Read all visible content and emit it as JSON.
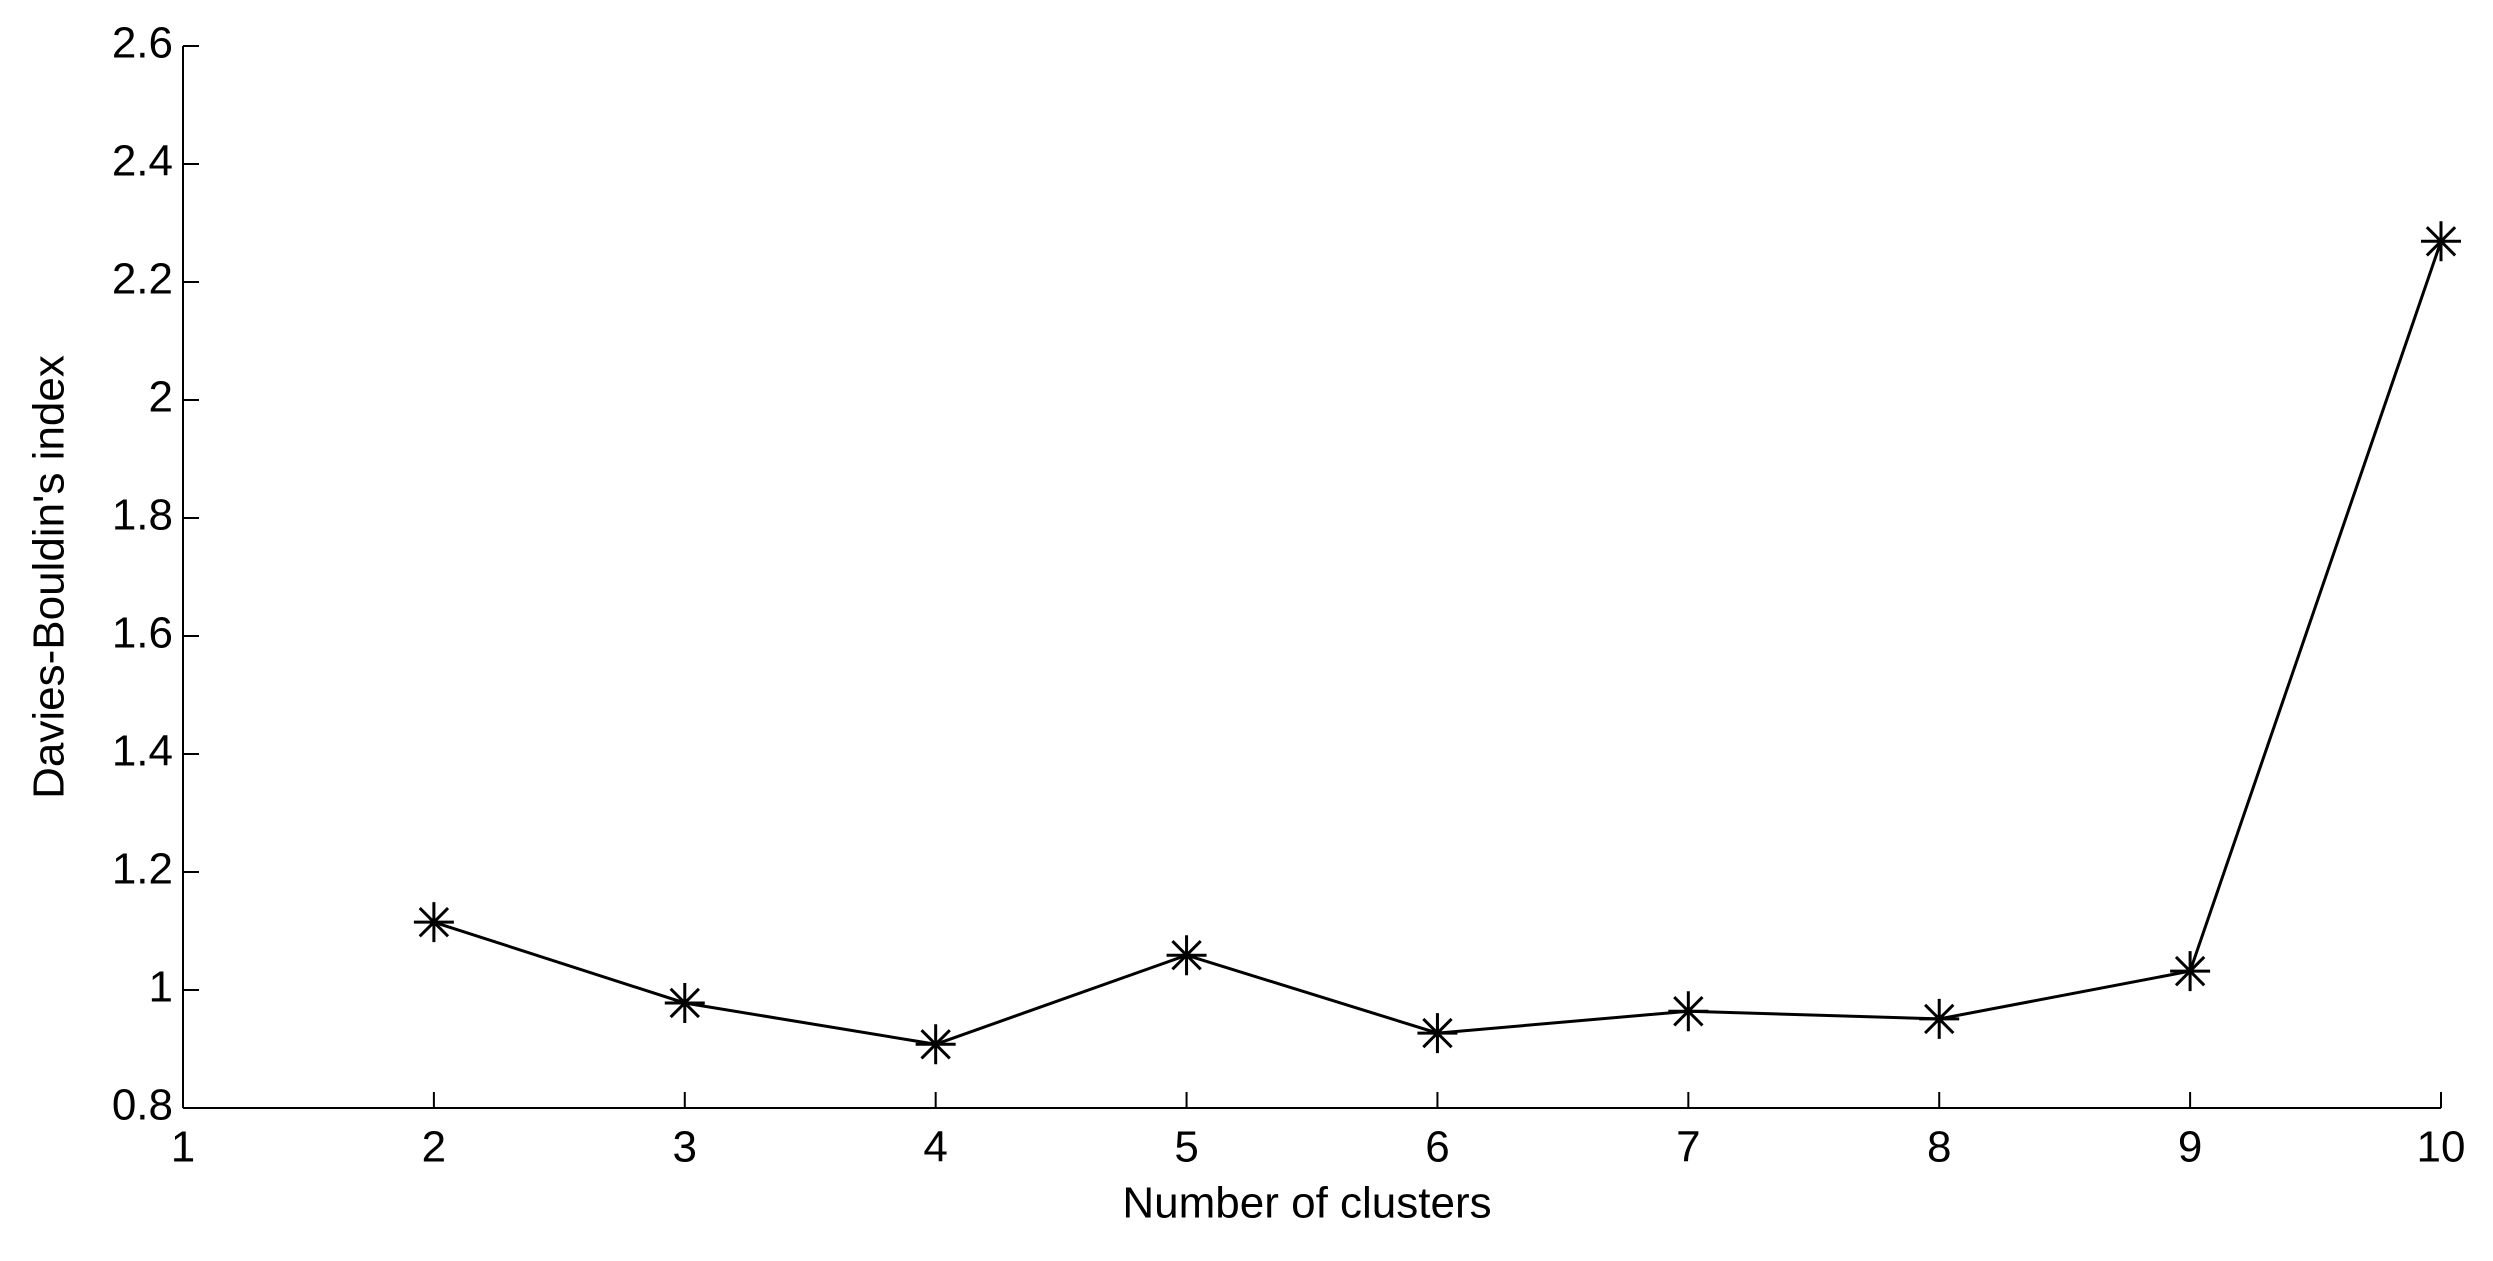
{
  "chart_data": {
    "type": "line",
    "x_label": "Number of clusters",
    "y_label": "Davies-Bouldin's index",
    "x": [
      2,
      3,
      4,
      5,
      6,
      7,
      8,
      9,
      10
    ],
    "series": [
      {
        "color": "#000000",
        "marker": "asterisk",
        "values": [
          1.115,
          0.978,
          0.908,
          1.059,
          0.927,
          0.964,
          0.951,
          1.032,
          2.269
        ]
      }
    ],
    "xlim": [
      1,
      10
    ],
    "xticks": [
      1,
      2,
      3,
      4,
      5,
      6,
      7,
      8,
      9,
      10
    ],
    "ylim": [
      0.8,
      2.6
    ],
    "yticks": [
      0.8,
      1,
      1.2,
      1.4,
      1.6,
      1.8,
      2,
      2.2,
      2.4,
      2.6
    ],
    "grid": false
  }
}
